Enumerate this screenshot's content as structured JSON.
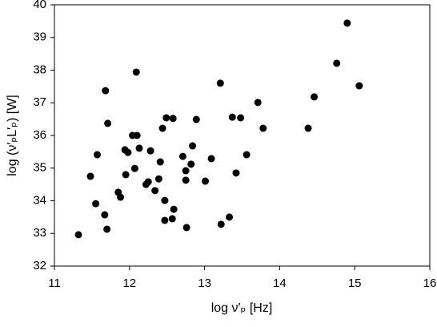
{
  "chart_data": {
    "type": "scatter",
    "x_label": "log ν′ₚ [Hz]",
    "y_label": "log (ν′ₚL′ₚ) [W]",
    "color": "#000000",
    "xlim": [
      11,
      16
    ],
    "xticks": [
      11,
      12,
      13,
      14,
      15,
      16
    ],
    "ylim": [
      32,
      40
    ],
    "yticks": [
      32,
      33,
      34,
      35,
      36,
      37,
      38,
      39,
      40
    ],
    "grid": false,
    "x": [
      11.32,
      11.48,
      11.57,
      11.55,
      11.67,
      11.7,
      11.68,
      11.71,
      11.85,
      11.88,
      11.95,
      11.94,
      11.98,
      12.04,
      12.1,
      12.07,
      12.09,
      12.13,
      12.22,
      12.25,
      12.28,
      12.34,
      12.39,
      12.41,
      12.44,
      12.49,
      12.47,
      12.47,
      12.57,
      12.59,
      12.58,
      12.71,
      12.75,
      12.75,
      12.76,
      12.82,
      12.84,
      12.89,
      13.01,
      13.09,
      13.21,
      13.22,
      13.33,
      13.37,
      13.42,
      13.48,
      13.56,
      13.71,
      13.78,
      14.38,
      14.46,
      14.76,
      14.9,
      15.06
    ],
    "values": [
      32.96,
      34.75,
      35.41,
      33.91,
      33.57,
      33.13,
      37.37,
      36.37,
      34.26,
      34.11,
      34.8,
      35.56,
      35.48,
      36.0,
      36.0,
      34.99,
      37.94,
      35.61,
      34.5,
      34.58,
      35.53,
      34.31,
      34.67,
      35.19,
      36.22,
      36.54,
      33.4,
      34.01,
      33.45,
      33.74,
      36.52,
      35.36,
      34.92,
      34.63,
      33.18,
      35.12,
      35.68,
      36.49,
      34.6,
      35.29,
      37.6,
      33.28,
      33.5,
      36.56,
      34.85,
      36.54,
      35.41,
      37.01,
      36.22,
      36.22,
      37.18,
      38.21,
      39.44,
      37.52
    ]
  }
}
